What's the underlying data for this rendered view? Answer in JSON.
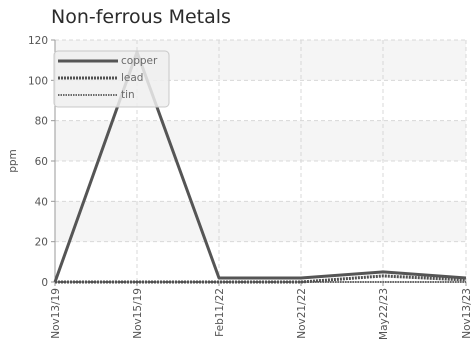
{
  "chart_data": {
    "type": "line",
    "title": "Non-ferrous Metals",
    "xlabel": "",
    "ylabel": "ppm",
    "categories": [
      "Nov13/19",
      "Nov15/19",
      "Feb11/22",
      "Nov21/22",
      "May22/23",
      "Nov13/23"
    ],
    "ylim": [
      0,
      120
    ],
    "yticks": [
      0,
      20,
      40,
      60,
      80,
      100,
      120
    ],
    "grid": true,
    "legend_position": "top-left",
    "series": [
      {
        "name": "copper",
        "values": [
          0,
          114,
          2,
          2,
          5,
          2
        ],
        "color": "#555555",
        "style": "solid"
      },
      {
        "name": "lead",
        "values": [
          0,
          0,
          0,
          0,
          3,
          1
        ],
        "color": "#505050",
        "style": "dotted-thick"
      },
      {
        "name": "tin",
        "values": [
          0,
          0,
          0,
          0,
          0,
          0
        ],
        "color": "#6a6a6a",
        "style": "dotted-thin"
      }
    ]
  }
}
